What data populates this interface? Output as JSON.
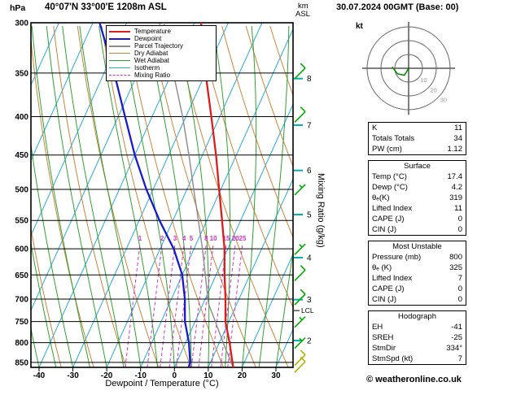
{
  "header": {
    "pressure_unit": "hPa",
    "title": "40°07'N 33°00'E 1208m ASL",
    "km_label": "km",
    "asl_label": "ASL",
    "datetime": "30.07.2024 00GMT (Base: 00)"
  },
  "legend": {
    "items": [
      {
        "label": "Temperature",
        "color": "#dd1c1c",
        "dash": false,
        "width": 2
      },
      {
        "label": "Dewpoint",
        "color": "#1a1acc",
        "dash": false,
        "width": 2
      },
      {
        "label": "Parcel Trajectory",
        "color": "#8a8a8a",
        "dash": false,
        "width": 2
      },
      {
        "label": "Dry Adiabat",
        "color": "#c8853c",
        "dash": false,
        "width": 1
      },
      {
        "label": "Wet Adiabat",
        "color": "#33a033",
        "dash": false,
        "width": 1
      },
      {
        "label": "Isotherm",
        "color": "#2aa8d8",
        "dash": false,
        "width": 1
      },
      {
        "label": "Mixing Ratio",
        "color": "#cc33cc",
        "dash": true,
        "width": 1
      }
    ]
  },
  "axes": {
    "pressure_ticks": [
      300,
      350,
      400,
      450,
      500,
      550,
      600,
      650,
      700,
      750,
      800,
      850
    ],
    "temp_ticks": [
      -40,
      -30,
      -20,
      -10,
      0,
      10,
      20,
      30
    ],
    "x_label": "Dewpoint / Temperature (°C)",
    "km_ticks": [
      2,
      3,
      4,
      5,
      6,
      7,
      8
    ],
    "right_label": "Mixing Ratio (g/kg)",
    "lcl_label": "LCL",
    "mixing_ratio_values": [
      1,
      2,
      3,
      4,
      5,
      8,
      10,
      15,
      20,
      25
    ]
  },
  "chart_data": {
    "type": "skewt-logp",
    "pressure_top_hpa": 300,
    "pressure_bottom_hpa": 863,
    "temp_axis_range_c": [
      -45,
      38
    ],
    "temperature_profile": {
      "pressure": [
        863,
        850,
        800,
        750,
        700,
        650,
        600,
        550,
        500,
        450,
        400,
        350,
        300
      ],
      "temp_c": [
        17.4,
        16.5,
        13.0,
        9.0,
        6.0,
        2.5,
        -1.0,
        -5.5,
        -10.5,
        -16.0,
        -22.5,
        -30.0,
        -38.0
      ]
    },
    "dewpoint_profile": {
      "pressure": [
        863,
        850,
        800,
        750,
        700,
        650,
        600,
        550,
        500,
        450,
        400,
        350,
        300
      ],
      "temp_c": [
        4.2,
        4.0,
        1.0,
        -3.0,
        -6.0,
        -10.0,
        -16.0,
        -24.0,
        -32.0,
        -40.0,
        -48.0,
        -57.0,
        -68.0
      ]
    },
    "parcel_profile": {
      "pressure": [
        863,
        800,
        750,
        712,
        700,
        650,
        600,
        550,
        500,
        450,
        400,
        350,
        300
      ],
      "temp_c": [
        17.4,
        11.1,
        6.0,
        1.8,
        0.8,
        -3.2,
        -7.5,
        -12.5,
        -18.0,
        -24.0,
        -31.0,
        -39.5,
        -49.0
      ]
    },
    "lcl_pressure": 725,
    "wind_barbs": [
      {
        "pressure": 350,
        "speed_kt": 10,
        "color": "#00aa00"
      },
      {
        "pressure": 400,
        "speed_kt": 10,
        "color": "#00aa00"
      },
      {
        "pressure": 500,
        "speed_kt": 5,
        "color": "#00aa00"
      },
      {
        "pressure": 600,
        "speed_kt": 5,
        "color": "#00aa00"
      },
      {
        "pressure": 650,
        "speed_kt": 10,
        "color": "#00aa00"
      },
      {
        "pressure": 700,
        "speed_kt": 10,
        "color": "#00aa00"
      },
      {
        "pressure": 750,
        "speed_kt": 5,
        "color": "#00aa00"
      },
      {
        "pressure": 800,
        "speed_kt": 5,
        "color": "#00aa00"
      },
      {
        "pressure": 843,
        "speed_kt": 10,
        "color": "#b0b000"
      },
      {
        "pressure": 861,
        "speed_kt": 10,
        "color": "#b0b000"
      }
    ]
  },
  "hodograph": {
    "unit": "kt",
    "ring_values": [
      10,
      20,
      30
    ],
    "trace_kt": [
      [
        0,
        0
      ],
      [
        -3,
        5
      ],
      [
        -8,
        4
      ],
      [
        -12,
        -1
      ]
    ]
  },
  "stats": {
    "summary": [
      {
        "label": "K",
        "value": "11"
      },
      {
        "label": "Totals Totals",
        "value": "34"
      },
      {
        "label": "PW (cm)",
        "value": "1.12"
      }
    ],
    "sections": [
      {
        "title": "Surface",
        "rows": [
          {
            "label": "Temp (°C)",
            "value": "17.4"
          },
          {
            "label": "Dewp (°C)",
            "value": "4.2"
          },
          {
            "label": "θₑ(K)",
            "value": "319"
          },
          {
            "label": "Lifted Index",
            "value": "11"
          },
          {
            "label": "CAPE (J)",
            "value": "0"
          },
          {
            "label": "CIN (J)",
            "value": "0"
          }
        ]
      },
      {
        "title": "Most Unstable",
        "rows": [
          {
            "label": "Pressure (mb)",
            "value": "800"
          },
          {
            "label": "θₑ (K)",
            "value": "325"
          },
          {
            "label": "Lifted Index",
            "value": "7"
          },
          {
            "label": "CAPE (J)",
            "value": "0"
          },
          {
            "label": "CIN (J)",
            "value": "0"
          }
        ]
      },
      {
        "title": "Hodograph",
        "rows": [
          {
            "label": "EH",
            "value": "-41"
          },
          {
            "label": "SREH",
            "value": "-25"
          },
          {
            "label": "StmDir",
            "value": "334°"
          },
          {
            "label": "StmSpd (kt)",
            "value": "7"
          }
        ]
      }
    ]
  },
  "footer": {
    "copyright": "© weatheronline.co.uk"
  }
}
